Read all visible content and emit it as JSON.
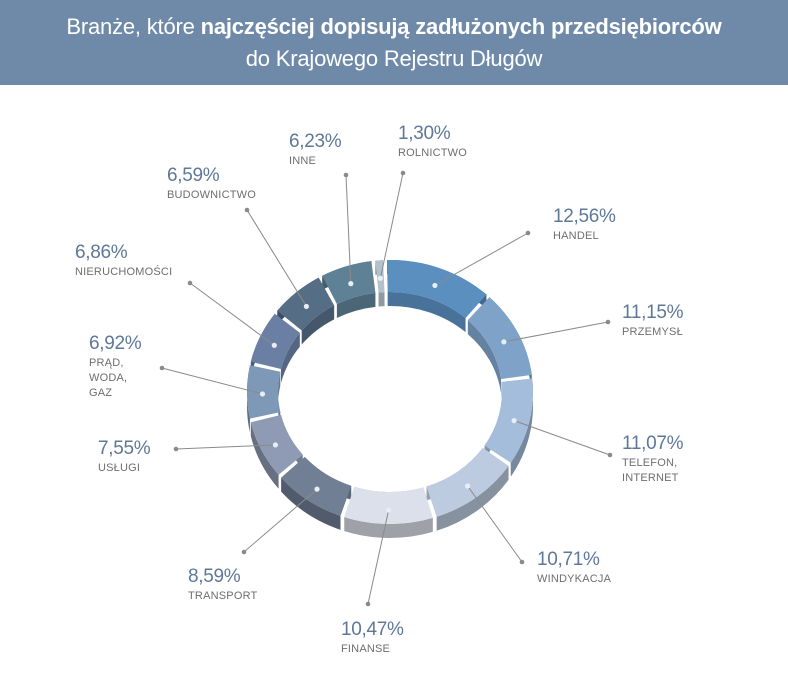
{
  "title": {
    "part1": "Branże, które ",
    "bold": "najczęściej dopisują zadłużonych przedsiębiorców",
    "line2": "do Krajowego Rejestru Długów"
  },
  "colors": {
    "header_bg": "#6f8aa9",
    "percent_text": "#5f7898",
    "category_text": "#6e6e6e",
    "leader_line": "#8a8a8a"
  },
  "chart_data": {
    "type": "pie",
    "style": "3d-donut",
    "title": "Branże, które najczęściej dopisują zadłużonych przedsiębiorców do Krajowego Rejestru Długów",
    "slices": [
      {
        "label": "HANDEL",
        "value": 12.56,
        "display": "12,56%",
        "color": "#5a8fbf"
      },
      {
        "label": "PRZEMYSŁ",
        "value": 11.15,
        "display": "11,15%",
        "color": "#7ea2c8"
      },
      {
        "label": "TELEFON,\nINTERNET",
        "value": 11.07,
        "display": "11,07%",
        "color": "#a3bddb"
      },
      {
        "label": "WINDYKACJA",
        "value": 10.71,
        "display": "10,71%",
        "color": "#bccbe0"
      },
      {
        "label": "FINANSE",
        "value": 10.47,
        "display": "10,47%",
        "color": "#dbe0ea"
      },
      {
        "label": "TRANSPORT",
        "value": 8.59,
        "display": "8,59%",
        "color": "#707f94"
      },
      {
        "label": "USŁUGI",
        "value": 7.55,
        "display": "7,55%",
        "color": "#8f9bb4"
      },
      {
        "label": "PRĄD,\nWODA,\nGAZ",
        "value": 6.92,
        "display": "6,92%",
        "color": "#7e98b8"
      },
      {
        "label": "NIERUCHOMOŚCI",
        "value": 6.86,
        "display": "6,86%",
        "color": "#6a7fa3"
      },
      {
        "label": "BUDOWNICTWO",
        "value": 6.59,
        "display": "6,59%",
        "color": "#566d86"
      },
      {
        "label": "INNE",
        "value": 6.23,
        "display": "6,23%",
        "color": "#5e8195"
      },
      {
        "label": "ROLNICTWO",
        "value": 1.3,
        "display": "1,30%",
        "color": "#b3c1cc"
      }
    ]
  }
}
